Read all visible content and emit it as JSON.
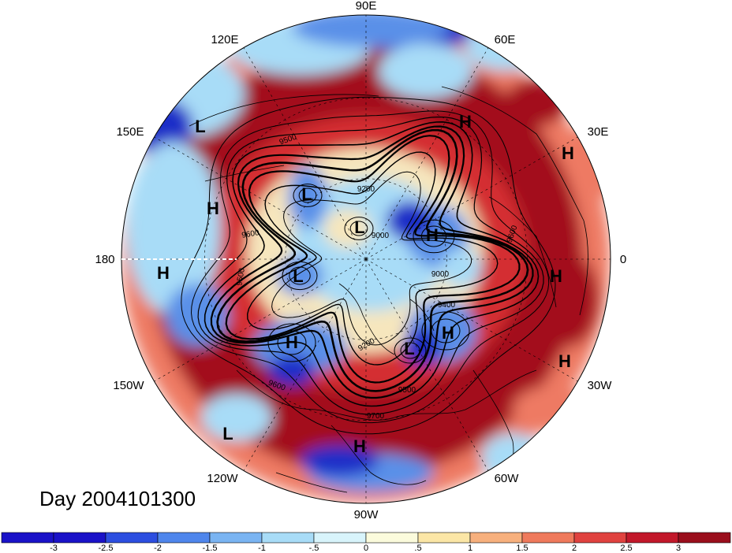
{
  "title": "Day 2004101300",
  "longitude_labels": [
    "90E",
    "60E",
    "30E",
    "0",
    "30W",
    "60W",
    "90W",
    "120W",
    "150W",
    "180",
    "150E",
    "120E"
  ],
  "pressure_systems": [
    "L",
    "H",
    "L",
    "H",
    "L",
    "H",
    "H",
    "H",
    "L",
    "H",
    "H",
    "H",
    "L",
    "H",
    "L",
    "H",
    "H",
    "L"
  ],
  "contour_labels": [
    "9500",
    "9200",
    "9600",
    "9600",
    "9500",
    "9000",
    "9400",
    "9200",
    "9600",
    "9500",
    "9700",
    "9000"
  ],
  "colorbar": {
    "ticks": [
      "-3",
      "-2.5",
      "-2",
      "-1.5",
      "-1",
      "-.5",
      "0",
      ".5",
      "1",
      "1.5",
      "2",
      "2.5",
      "3"
    ],
    "colors": [
      "#1a12c8",
      "#2c4ee0",
      "#4f86ec",
      "#7ab4f2",
      "#a8dcf7",
      "#d8f4fb",
      "#fbfbdc",
      "#fbe6a6",
      "#f7b07d",
      "#ef7a5c",
      "#e0423f",
      "#c2182a",
      "#9a0e1c"
    ]
  },
  "fill_colors": {
    "deep_red": "#a30e1f",
    "red": "#d42f33",
    "light_red": "#ee7a63",
    "cream": "#f6e6bd",
    "light_blue": "#a8dcf7",
    "blue": "#5a90e8",
    "deep_blue": "#1f2ec8"
  }
}
